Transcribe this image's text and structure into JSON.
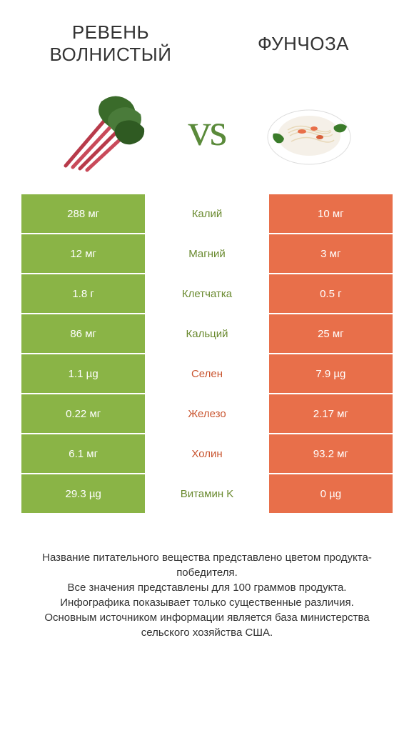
{
  "colors": {
    "left": "#8ab446",
    "right": "#e86f4a",
    "winner_left": "#6a8a2f",
    "winner_right": "#c95530"
  },
  "header": {
    "left_title": "Ревень волнистый",
    "right_title": "Фунчоза",
    "vs": "vs"
  },
  "rows": [
    {
      "left": "288 мг",
      "mid": "Калий",
      "right": "10 мг",
      "winner": "left"
    },
    {
      "left": "12 мг",
      "mid": "Магний",
      "right": "3 мг",
      "winner": "left"
    },
    {
      "left": "1.8 г",
      "mid": "Клетчатка",
      "right": "0.5 г",
      "winner": "left"
    },
    {
      "left": "86 мг",
      "mid": "Кальций",
      "right": "25 мг",
      "winner": "left"
    },
    {
      "left": "1.1 µg",
      "mid": "Селен",
      "right": "7.9 µg",
      "winner": "right"
    },
    {
      "left": "0.22 мг",
      "mid": "Железо",
      "right": "2.17 мг",
      "winner": "right"
    },
    {
      "left": "6.1 мг",
      "mid": "Холин",
      "right": "93.2 мг",
      "winner": "right"
    },
    {
      "left": "29.3 µg",
      "mid": "Витамин K",
      "right": "0 µg",
      "winner": "left"
    }
  ],
  "footer": {
    "l1": "Название питательного вещества представлено цветом продукта-победителя.",
    "l2": "Все значения представлены для 100 граммов продукта.",
    "l3": "Инфографика показывает только существенные различия.",
    "l4": "Основным источником информации является база министерства сельского хозяйства США."
  }
}
